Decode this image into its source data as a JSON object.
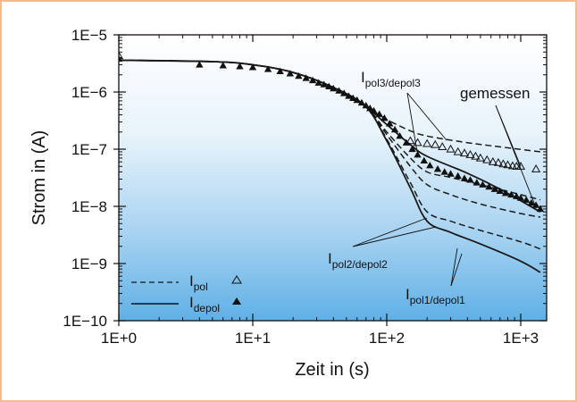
{
  "chart_data": {
    "type": "line",
    "title": "",
    "xlabel": "Zeit in (s)",
    "ylabel": "Strom in (A)",
    "xscale": "log",
    "yscale": "log",
    "xlim": [
      1,
      1500
    ],
    "ylim": [
      1e-10,
      1e-05
    ],
    "x_ticks": [
      1,
      10,
      100,
      1000
    ],
    "x_tick_labels": [
      "1E+0",
      "1E+1",
      "1E+2",
      "1E+3"
    ],
    "y_ticks": [
      1e-05,
      1e-06,
      1e-07,
      1e-08,
      1e-09,
      1e-10
    ],
    "y_tick_labels": [
      "1E−5",
      "1E−6",
      "1E−7",
      "1E−8",
      "1E−9",
      "1E−10"
    ],
    "background": "gradient white to light blue (bottom)",
    "colors": {
      "frame": "#f4bb93",
      "curve": "#1a1a1a",
      "bg_top": "#ffffff",
      "bg_bottom": "#5fb0e6"
    },
    "series": [
      {
        "name": "I pol3",
        "style": "dashed",
        "points": [
          [
            1,
            3.6e-06
          ],
          [
            5,
            3.4e-06
          ],
          [
            10,
            3e-06
          ],
          [
            20,
            2.2e-06
          ],
          [
            40,
            1.2e-06
          ],
          [
            70,
            5.5e-07
          ],
          [
            100,
            3.3e-07
          ],
          [
            150,
            2.1e-07
          ],
          [
            200,
            1.7e-07
          ],
          [
            400,
            1.3e-07
          ],
          [
            700,
            1.1e-07
          ],
          [
            1400,
            9e-08
          ]
        ]
      },
      {
        "name": "I depol3",
        "style": "solid",
        "points": [
          [
            1,
            3.6e-06
          ],
          [
            5,
            3.4e-06
          ],
          [
            10,
            3e-06
          ],
          [
            20,
            2.2e-06
          ],
          [
            40,
            1.2e-06
          ],
          [
            70,
            5.5e-07
          ],
          [
            100,
            2.7e-07
          ],
          [
            150,
            1.2e-07
          ],
          [
            200,
            7.5e-08
          ],
          [
            400,
            3.8e-08
          ],
          [
            700,
            2e-08
          ],
          [
            1400,
            8e-09
          ]
        ]
      },
      {
        "name": "I pol2",
        "style": "dashed",
        "points": [
          [
            1,
            3.6e-06
          ],
          [
            5,
            3.4e-06
          ],
          [
            10,
            3e-06
          ],
          [
            20,
            2.2e-06
          ],
          [
            40,
            1.2e-06
          ],
          [
            70,
            5.5e-07
          ],
          [
            100,
            2e-07
          ],
          [
            150,
            7e-08
          ],
          [
            200,
            4e-08
          ],
          [
            300,
            3.2e-08
          ],
          [
            500,
            2.4e-08
          ],
          [
            1000,
            1.6e-08
          ],
          [
            1400,
            1.3e-08
          ]
        ]
      },
      {
        "name": "I depol2",
        "style": "dashed",
        "points": [
          [
            1,
            3.6e-06
          ],
          [
            5,
            3.4e-06
          ],
          [
            10,
            3e-06
          ],
          [
            20,
            2.2e-06
          ],
          [
            40,
            1.2e-06
          ],
          [
            70,
            5.5e-07
          ],
          [
            100,
            1.8e-07
          ],
          [
            150,
            5e-08
          ],
          [
            200,
            2.4e-08
          ],
          [
            300,
            1.6e-08
          ],
          [
            500,
            1.1e-08
          ],
          [
            1000,
            7.5e-09
          ],
          [
            1400,
            6.5e-09
          ]
        ]
      },
      {
        "name": "I pol1",
        "style": "dashed",
        "points": [
          [
            1,
            3.6e-06
          ],
          [
            5,
            3.4e-06
          ],
          [
            10,
            3e-06
          ],
          [
            20,
            2.2e-06
          ],
          [
            40,
            1.2e-06
          ],
          [
            70,
            5.5e-07
          ],
          [
            100,
            1.5e-07
          ],
          [
            150,
            2.6e-08
          ],
          [
            200,
            8e-09
          ],
          [
            300,
            5.5e-09
          ],
          [
            500,
            3.8e-09
          ],
          [
            1000,
            2.4e-09
          ],
          [
            1400,
            1.8e-09
          ]
        ]
      },
      {
        "name": "I depol1",
        "style": "solid",
        "points": [
          [
            1,
            3.6e-06
          ],
          [
            5,
            3.4e-06
          ],
          [
            10,
            3e-06
          ],
          [
            20,
            2.2e-06
          ],
          [
            40,
            1.2e-06
          ],
          [
            70,
            5.5e-07
          ],
          [
            100,
            1.4e-07
          ],
          [
            150,
            2.1e-08
          ],
          [
            200,
            5.5e-09
          ],
          [
            300,
            3.5e-09
          ],
          [
            500,
            2.2e-09
          ],
          [
            1000,
            1.1e-09
          ],
          [
            1400,
            7e-10
          ]
        ]
      }
    ],
    "measured_pol": [
      [
        1,
        4.3e-06
      ],
      [
        150,
        1.4e-07
      ],
      [
        170,
        1.3e-07
      ],
      [
        200,
        1.25e-07
      ],
      [
        230,
        1.2e-07
      ],
      [
        260,
        1.1e-07
      ],
      [
        300,
        1e-07
      ],
      [
        340,
        9e-08
      ],
      [
        380,
        8.5e-08
      ],
      [
        420,
        8e-08
      ],
      [
        460,
        7.5e-08
      ],
      [
        500,
        7e-08
      ],
      [
        560,
        6.5e-08
      ],
      [
        620,
        6e-08
      ],
      [
        680,
        5.8e-08
      ],
      [
        740,
        5.5e-08
      ],
      [
        800,
        5.3e-08
      ],
      [
        870,
        5.1e-08
      ],
      [
        930,
        5e-08
      ],
      [
        1000,
        5e-08
      ],
      [
        1300,
        4.5e-08
      ]
    ],
    "measured_depol": [
      [
        1,
        3.8e-06
      ],
      [
        4,
        3e-06
      ],
      [
        6,
        2.9e-06
      ],
      [
        8,
        2.8e-06
      ],
      [
        10,
        2.7e-06
      ],
      [
        13,
        2.5e-06
      ],
      [
        16,
        2.3e-06
      ],
      [
        19,
        2.1e-06
      ],
      [
        22,
        1.9e-06
      ],
      [
        25,
        1.75e-06
      ],
      [
        28,
        1.6e-06
      ],
      [
        31,
        1.45e-06
      ],
      [
        34,
        1.35e-06
      ],
      [
        37,
        1.25e-06
      ],
      [
        40,
        1.15e-06
      ],
      [
        44,
        1.05e-06
      ],
      [
        48,
        9.5e-07
      ],
      [
        52,
        8.5e-07
      ],
      [
        56,
        7.8e-07
      ],
      [
        60,
        7.2e-07
      ],
      [
        65,
        6.5e-07
      ],
      [
        70,
        5.8e-07
      ],
      [
        75,
        5.2e-07
      ],
      [
        80,
        4.7e-07
      ],
      [
        88,
        4.1e-07
      ],
      [
        96,
        3.5e-07
      ],
      [
        105,
        2.8e-07
      ],
      [
        115,
        2.2e-07
      ],
      [
        125,
        1.7e-07
      ],
      [
        140,
        1.3e-07
      ],
      [
        155,
        1e-07
      ],
      [
        170,
        8e-08
      ],
      [
        190,
        6.3e-08
      ],
      [
        210,
        5.2e-08
      ],
      [
        240,
        4.5e-08
      ],
      [
        270,
        4e-08
      ],
      [
        300,
        3.7e-08
      ],
      [
        340,
        3.4e-08
      ],
      [
        380,
        3.1e-08
      ],
      [
        420,
        2.9e-08
      ],
      [
        470,
        2.6e-08
      ],
      [
        520,
        2.4e-08
      ],
      [
        580,
        2.2e-08
      ],
      [
        640,
        2e-08
      ],
      [
        700,
        1.85e-08
      ],
      [
        770,
        1.7e-08
      ],
      [
        850,
        1.6e-08
      ],
      [
        930,
        1.5e-08
      ],
      [
        1000,
        1.4e-08
      ],
      [
        1100,
        1.3e-08
      ],
      [
        1200,
        1.15e-08
      ],
      [
        1300,
        1.05e-08
      ],
      [
        1400,
        9e-09
      ]
    ],
    "annotations": [
      {
        "id": "pol3",
        "main": "I",
        "sub": "pol3/depol3"
      },
      {
        "id": "gemessen",
        "main": "gemessen",
        "sub": ""
      },
      {
        "id": "pol2",
        "main": "I",
        "sub": "pol2/depol2"
      },
      {
        "id": "pol1",
        "main": "I",
        "sub": "pol1/depol1"
      }
    ],
    "legend": {
      "position": "bottom-left",
      "entries": [
        {
          "main": "I",
          "sub": "pol",
          "line": "dashed",
          "marker": "open-triangle"
        },
        {
          "main": "I",
          "sub": "depol",
          "line": "solid",
          "marker": "filled-triangle"
        }
      ]
    }
  }
}
